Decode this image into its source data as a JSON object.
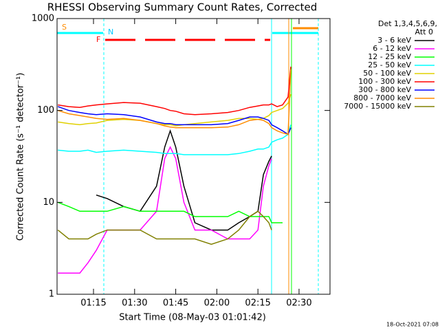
{
  "chart_data": {
    "type": "line",
    "title": "RHESSI Observing Summary Count Rates, Corrected",
    "xlabel": "Start Time (08-May-03 01:01:42)",
    "ylabel": "Corrected Count Rate (s⁻¹ detector⁻¹)",
    "legend_title": [
      "Det 1,3,4,5,6,9,",
      "Att 0"
    ],
    "legend": "right",
    "annotations": [
      "S",
      "N",
      "F"
    ],
    "footer": "18-Oct-2021 07:08",
    "log_y": true,
    "xlim": [
      61.7,
      161.3
    ],
    "xticks": [
      {
        "value": 75,
        "label": "01:15"
      },
      {
        "value": 90,
        "label": "01:30"
      },
      {
        "value": 105,
        "label": "01:45"
      },
      {
        "value": 120,
        "label": "02:00"
      },
      {
        "value": 135,
        "label": "02:15"
      },
      {
        "value": 150,
        "label": "02:30"
      }
    ],
    "ylim": [
      1,
      1000
    ],
    "yticks": [
      1,
      10,
      100,
      1000
    ],
    "x": [
      62,
      66,
      70,
      73,
      76,
      80,
      86,
      92,
      98,
      101,
      103,
      105,
      108,
      112,
      118,
      124,
      128,
      132,
      135,
      137,
      139,
      140,
      142,
      144,
      146,
      147
    ],
    "series": [
      {
        "name": "3 - 6 keV",
        "color": "#000000",
        "values": [
          null,
          null,
          null,
          null,
          12,
          11,
          9,
          8,
          15,
          40,
          60,
          40,
          15,
          6,
          5,
          5,
          6,
          7,
          8,
          20,
          28,
          32,
          null,
          null,
          null,
          null
        ]
      },
      {
        "name": "6 - 12 keV",
        "color": "#ff00ff",
        "values": [
          1.7,
          1.7,
          1.7,
          2.2,
          3,
          5,
          5,
          5,
          8,
          30,
          40,
          30,
          10,
          5,
          5,
          4,
          4,
          4,
          5,
          15,
          25,
          30,
          null,
          null,
          null,
          null
        ]
      },
      {
        "name": "12 - 25 keV",
        "color": "#00ff00",
        "values": [
          10,
          9,
          8,
          8,
          8,
          8,
          9,
          8,
          8,
          8,
          8,
          8,
          8,
          7,
          7,
          7,
          8,
          7,
          7,
          7,
          7,
          6,
          6,
          6,
          null,
          null
        ]
      },
      {
        "name": "25 - 50 keV",
        "color": "#00ffff",
        "values": [
          37,
          36,
          36,
          37,
          35,
          36,
          37,
          36,
          35,
          34,
          34,
          34,
          33,
          33,
          33,
          33,
          34,
          36,
          38,
          38,
          40,
          45,
          48,
          50,
          55,
          70
        ]
      },
      {
        "name": "50 - 100 keV",
        "color": "#e0d000",
        "values": [
          75,
          72,
          70,
          72,
          73,
          78,
          80,
          78,
          72,
          70,
          70,
          68,
          70,
          72,
          75,
          78,
          82,
          82,
          80,
          82,
          88,
          95,
          100,
          105,
          120,
          150
        ]
      },
      {
        "name": "100 - 300 keV",
        "color": "#ff0000",
        "values": [
          115,
          110,
          108,
          112,
          115,
          118,
          122,
          120,
          110,
          105,
          100,
          98,
          92,
          90,
          92,
          95,
          100,
          108,
          112,
          115,
          115,
          118,
          110,
          115,
          140,
          300
        ]
      },
      {
        "name": "300 - 800 keV",
        "color": "#0000ff",
        "values": [
          110,
          100,
          95,
          92,
          90,
          92,
          90,
          85,
          75,
          72,
          72,
          70,
          70,
          70,
          70,
          72,
          78,
          85,
          85,
          82,
          78,
          70,
          65,
          60,
          55,
          65
        ]
      },
      {
        "name": "800 - 7000 keV",
        "color": "#ff8c00",
        "values": [
          100,
          92,
          88,
          85,
          82,
          80,
          82,
          78,
          72,
          68,
          66,
          65,
          65,
          65,
          65,
          66,
          70,
          78,
          80,
          78,
          72,
          65,
          60,
          57,
          55,
          280
        ]
      },
      {
        "name": "7000 - 15000 keV",
        "color": "#808000",
        "values": [
          5,
          4,
          4,
          4,
          4.5,
          5,
          5,
          5,
          4,
          4,
          4,
          4,
          4,
          4,
          3.5,
          4,
          5,
          7,
          8,
          7,
          6,
          5,
          null,
          null,
          null,
          null
        ]
      }
    ]
  }
}
